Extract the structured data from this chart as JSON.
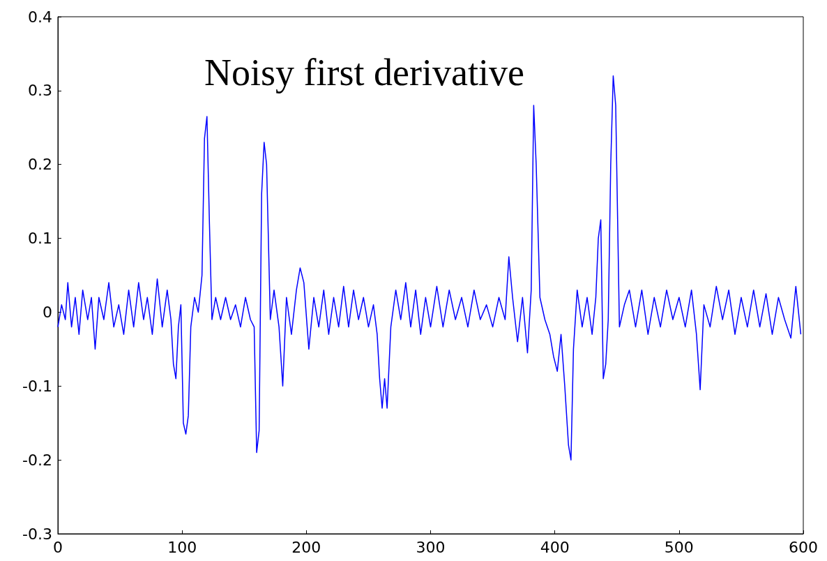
{
  "chart_data": {
    "type": "line",
    "title": "Noisy first derivative",
    "grid": false,
    "marker": "none",
    "line_style": "solid",
    "xlim": [
      0,
      600
    ],
    "xticks": [
      0,
      100,
      200,
      300,
      400,
      500,
      600
    ],
    "ylim": [
      -0.3,
      0.4
    ],
    "yticks": [
      0.4,
      0.3,
      0.2,
      0.1,
      0,
      -0.1,
      -0.2,
      -0.3
    ],
    "series": [
      {
        "color": "#0000ff",
        "x": [
          0,
          3,
          6,
          8,
          11,
          14,
          17,
          20,
          24,
          27,
          30,
          33,
          37,
          41,
          45,
          49,
          53,
          57,
          61,
          65,
          69,
          72,
          76,
          80,
          84,
          88,
          91,
          93,
          95,
          97,
          99,
          101,
          103,
          105,
          107,
          110,
          113,
          116,
          118,
          120,
          122,
          124,
          127,
          131,
          135,
          139,
          143,
          147,
          151,
          155,
          158,
          160,
          162,
          164,
          166,
          168,
          171,
          174,
          178,
          181,
          184,
          188,
          192,
          195,
          198,
          202,
          206,
          210,
          214,
          218,
          222,
          226,
          230,
          234,
          238,
          242,
          246,
          250,
          254,
          257,
          259,
          261,
          263,
          265,
          268,
          272,
          276,
          280,
          284,
          288,
          292,
          296,
          300,
          305,
          310,
          315,
          320,
          325,
          330,
          335,
          340,
          345,
          350,
          355,
          360,
          363,
          366,
          370,
          374,
          378,
          381,
          383,
          385,
          388,
          392,
          396,
          399,
          402,
          405,
          408,
          411,
          413,
          415,
          418,
          422,
          426,
          430,
          433,
          435,
          437,
          439,
          441,
          443,
          445,
          447,
          449,
          452,
          456,
          460,
          465,
          470,
          475,
          480,
          485,
          490,
          495,
          500,
          505,
          510,
          514,
          517,
          520,
          525,
          530,
          535,
          540,
          545,
          550,
          555,
          560,
          565,
          570,
          575,
          580,
          585,
          590,
          594,
          598
        ],
        "values": [
          -0.02,
          0.01,
          -0.01,
          0.04,
          -0.02,
          0.02,
          -0.03,
          0.03,
          -0.01,
          0.02,
          -0.05,
          0.02,
          -0.01,
          0.04,
          -0.02,
          0.01,
          -0.03,
          0.03,
          -0.02,
          0.04,
          -0.01,
          0.02,
          -0.03,
          0.045,
          -0.02,
          0.03,
          -0.01,
          -0.07,
          -0.09,
          -0.02,
          0.01,
          -0.15,
          -0.165,
          -0.14,
          -0.02,
          0.02,
          0.0,
          0.05,
          0.235,
          0.265,
          0.12,
          -0.01,
          0.02,
          -0.01,
          0.02,
          -0.01,
          0.01,
          -0.02,
          0.02,
          -0.01,
          -0.02,
          -0.19,
          -0.16,
          0.16,
          0.23,
          0.2,
          -0.01,
          0.03,
          -0.02,
          -0.1,
          0.02,
          -0.03,
          0.03,
          0.06,
          0.04,
          -0.05,
          0.02,
          -0.02,
          0.03,
          -0.03,
          0.02,
          -0.02,
          0.035,
          -0.02,
          0.03,
          -0.01,
          0.02,
          -0.02,
          0.01,
          -0.03,
          -0.09,
          -0.13,
          -0.09,
          -0.13,
          -0.02,
          0.03,
          -0.01,
          0.04,
          -0.02,
          0.03,
          -0.03,
          0.02,
          -0.02,
          0.035,
          -0.02,
          0.03,
          -0.01,
          0.02,
          -0.02,
          0.03,
          -0.01,
          0.01,
          -0.02,
          0.02,
          -0.01,
          0.075,
          0.02,
          -0.04,
          0.02,
          -0.055,
          0.03,
          0.28,
          0.2,
          0.02,
          -0.01,
          -0.03,
          -0.06,
          -0.08,
          -0.03,
          -0.1,
          -0.18,
          -0.2,
          -0.05,
          0.03,
          -0.02,
          0.02,
          -0.03,
          0.02,
          0.1,
          0.125,
          -0.09,
          -0.07,
          -0.01,
          0.2,
          0.32,
          0.28,
          -0.02,
          0.01,
          0.03,
          -0.02,
          0.03,
          -0.03,
          0.02,
          -0.02,
          0.03,
          -0.01,
          0.02,
          -0.02,
          0.03,
          -0.03,
          -0.105,
          0.01,
          -0.02,
          0.035,
          -0.01,
          0.03,
          -0.03,
          0.02,
          -0.02,
          0.03,
          -0.02,
          0.025,
          -0.03,
          0.02,
          -0.01,
          -0.035,
          0.035,
          -0.03
        ]
      }
    ]
  }
}
